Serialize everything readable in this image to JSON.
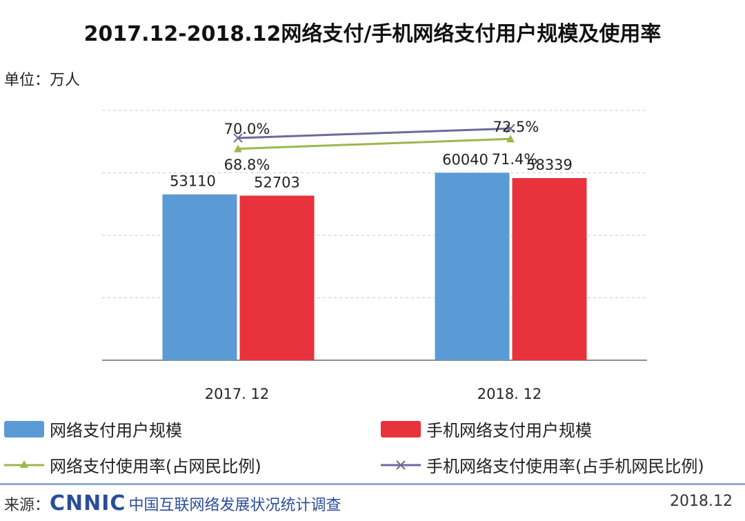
{
  "title": "2017.12-2018.12网络支付/手机网络支付用户规模及使用率",
  "unit_label": "单位：万人",
  "chart_data": {
    "type": "bar",
    "categories": [
      "2017. 12",
      "2018. 12"
    ],
    "ylim": [
      0,
      80000
    ],
    "series": [
      {
        "name": "网络支付用户规模",
        "color": "#5b9bd5",
        "values": [
          53110,
          60040
        ],
        "labels": [
          "53110",
          "60040"
        ]
      },
      {
        "name": "手机网络支付用户规模",
        "color": "#e8323c",
        "values": [
          52703,
          58339
        ],
        "labels": [
          "52703",
          "58339"
        ]
      }
    ],
    "line_series": [
      {
        "name": "网络支付使用率(占网民比例)",
        "color": "#9ab84a",
        "marker": "triangle",
        "values": [
          68.8,
          71.4
        ],
        "labels": [
          "68.8%",
          "71.4%"
        ]
      },
      {
        "name": "手机网络支付使用率(占手机网民比例)",
        "color": "#6b6b9a",
        "marker": "x",
        "values": [
          70.0,
          72.5
        ],
        "labels": [
          "70.0%",
          "72.5%"
        ]
      }
    ],
    "grid": true
  },
  "footer": {
    "source_label": "来源：",
    "logo_text": "CNNIC",
    "org_name": "中国互联网络发展状况统计调查",
    "date": "2018.12"
  }
}
